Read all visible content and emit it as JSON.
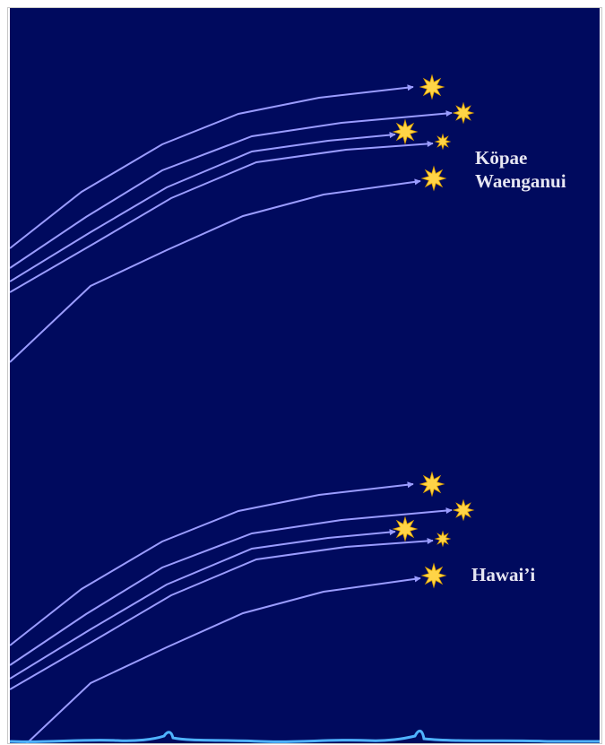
{
  "labels": {
    "top_line1": "Köpae",
    "top_line2": "Waenganui",
    "bottom": "Hawai’i"
  },
  "colors": {
    "background": "#000a5e",
    "arrow": "#9a9cff",
    "star": "#ffd447",
    "star_edge": "#e0a400",
    "water": "#4fb3ff",
    "text": "#e6e6f2"
  },
  "icons": {
    "star": "eight-point-star-icon",
    "arrow": "arrow-icon",
    "water": "wave-icon"
  }
}
